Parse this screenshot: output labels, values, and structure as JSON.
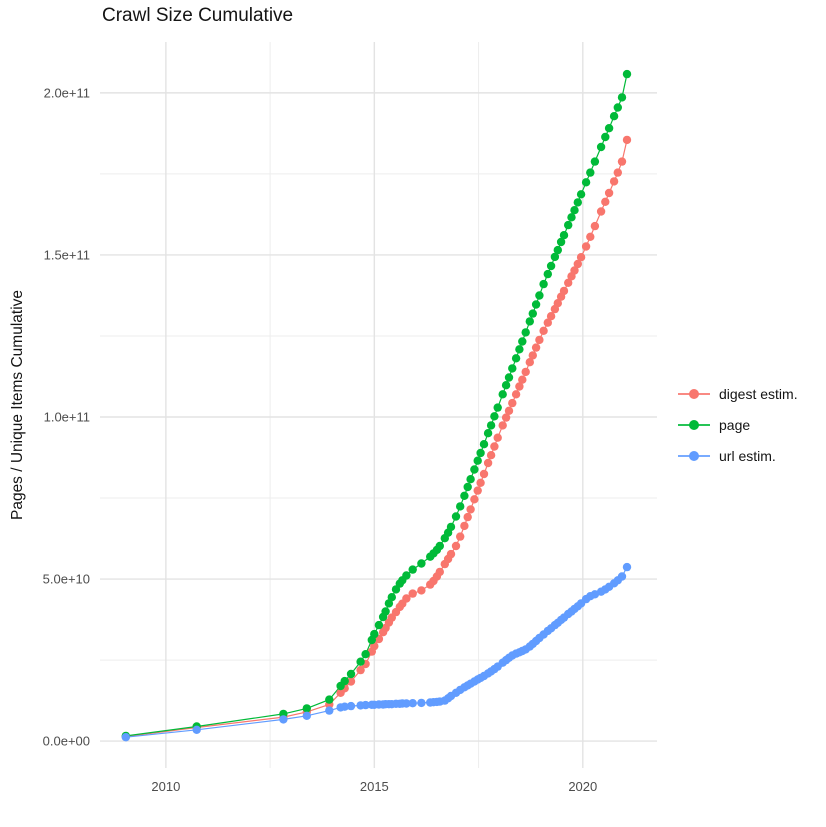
{
  "title": "Crawl Size Cumulative",
  "y_axis_label": "Pages / Unique Items Cumulative",
  "colors": {
    "digest": "#F8766D",
    "page": "#00BA38",
    "url": "#619CFF",
    "grid_major": "#E3E3E3",
    "grid_minor": "#EDEDED",
    "tick_text": "#4D4D4D"
  },
  "legend": {
    "items": [
      {
        "label": "digest estim.",
        "color": "#F8766D"
      },
      {
        "label": "page",
        "color": "#00BA38"
      },
      {
        "label": "url estim.",
        "color": "#619CFF"
      }
    ]
  },
  "chart_data": {
    "type": "scatter",
    "title": "Crawl Size Cumulative",
    "xlabel": "",
    "ylabel": "Pages / Unique Items Cumulative",
    "grid": true,
    "legend_position": "right",
    "xlim": [
      2008.42,
      2021.78
    ],
    "ylim": [
      -8300000000.0,
      215700000000.0
    ],
    "x_ticks": {
      "values": [
        2010,
        2015,
        2020
      ],
      "labels": [
        "2010",
        "2015",
        "2020"
      ]
    },
    "x_minor": [
      2012.5,
      2017.5
    ],
    "y_ticks": {
      "values": [
        0,
        50000000000.0,
        100000000000.0,
        150000000000.0,
        200000000000.0
      ],
      "labels": [
        "0.0e+00",
        "5.0e+10",
        "1.0e+11",
        "1.5e+11",
        "2.0e+11"
      ]
    },
    "y_minor": [
      25000000000.0,
      75000000000.0,
      125000000000.0,
      175000000000.0
    ],
    "series": [
      {
        "name": "digest estim.",
        "color": "#F8766D",
        "points": [
          [
            2009.04,
            1400000000.0
          ],
          [
            2010.74,
            4200000000.0
          ],
          [
            2012.82,
            7400000000.0
          ],
          [
            2013.38,
            9000000000.0
          ],
          [
            2013.92,
            11300000000.0
          ],
          [
            2014.19,
            14900000000.0
          ],
          [
            2014.29,
            16300000000.0
          ],
          [
            2014.44,
            18400000000.0
          ],
          [
            2014.67,
            21900000000.0
          ],
          [
            2014.79,
            23800000000.0
          ],
          [
            2014.94,
            27600000000.0
          ],
          [
            2015.0,
            29300000000.0
          ],
          [
            2015.11,
            31500000000.0
          ],
          [
            2015.21,
            33600000000.0
          ],
          [
            2015.27,
            34900000000.0
          ],
          [
            2015.35,
            36600000000.0
          ],
          [
            2015.42,
            38100000000.0
          ],
          [
            2015.52,
            39800000000.0
          ],
          [
            2015.61,
            41400000000.0
          ],
          [
            2015.67,
            42400000000.0
          ],
          [
            2015.77,
            44000000000.0
          ],
          [
            2015.92,
            45500000000.0
          ],
          [
            2016.13,
            46500000000.0
          ],
          [
            2016.34,
            48300000000.0
          ],
          [
            2016.42,
            49400000000.0
          ],
          [
            2016.5,
            50800000000.0
          ],
          [
            2016.57,
            52200000000.0
          ],
          [
            2016.69,
            54600000000.0
          ],
          [
            2016.77,
            56200000000.0
          ],
          [
            2016.84,
            57700000000.0
          ],
          [
            2016.96,
            60200000000.0
          ],
          [
            2017.06,
            63100000000.0
          ],
          [
            2017.16,
            66400000000.0
          ],
          [
            2017.24,
            69100000000.0
          ],
          [
            2017.31,
            71500000000.0
          ],
          [
            2017.4,
            74600000000.0
          ],
          [
            2017.48,
            77300000000.0
          ],
          [
            2017.55,
            79700000000.0
          ],
          [
            2017.63,
            82400000000.0
          ],
          [
            2017.73,
            85800000000.0
          ],
          [
            2017.8,
            88200000000.0
          ],
          [
            2017.88,
            90900000000.0
          ],
          [
            2017.96,
            93600000000.0
          ],
          [
            2018.08,
            97400000000.0
          ],
          [
            2018.16,
            99800000000.0
          ],
          [
            2018.23,
            101900000000.0
          ],
          [
            2018.31,
            104300000000.0
          ],
          [
            2018.4,
            107000000000.0
          ],
          [
            2018.48,
            109400000000.0
          ],
          [
            2018.55,
            111500000000.0
          ],
          [
            2018.63,
            113900000000.0
          ],
          [
            2018.73,
            116900000000.0
          ],
          [
            2018.8,
            119000000000.0
          ],
          [
            2018.88,
            121400000000.0
          ],
          [
            2018.96,
            123800000000.0
          ],
          [
            2019.06,
            126600000000.0
          ],
          [
            2019.16,
            129100000000.0
          ],
          [
            2019.24,
            131100000000.0
          ],
          [
            2019.33,
            133300000000.0
          ],
          [
            2019.4,
            135100000000.0
          ],
          [
            2019.48,
            137100000000.0
          ],
          [
            2019.55,
            138900000000.0
          ],
          [
            2019.65,
            141400000000.0
          ],
          [
            2019.73,
            143400000000.0
          ],
          [
            2019.8,
            145200000000.0
          ],
          [
            2019.88,
            147200000000.0
          ],
          [
            2019.96,
            149300000000.0
          ],
          [
            2020.08,
            152600000000.0
          ],
          [
            2020.18,
            155600000000.0
          ],
          [
            2020.29,
            158900000000.0
          ],
          [
            2020.44,
            163400000000.0
          ],
          [
            2020.54,
            166400000000.0
          ],
          [
            2020.63,
            169100000000.0
          ],
          [
            2020.75,
            172700000000.0
          ],
          [
            2020.84,
            175400000000.0
          ],
          [
            2020.94,
            178800000000.0
          ],
          [
            2021.06,
            185500000000.0
          ]
        ]
      },
      {
        "name": "page",
        "color": "#00BA38",
        "points": [
          [
            2009.04,
            1600000000.0
          ],
          [
            2010.74,
            4500000000.0
          ],
          [
            2012.82,
            8400000000.0
          ],
          [
            2013.38,
            10100000000.0
          ],
          [
            2013.92,
            12800000000.0
          ],
          [
            2014.19,
            17000000000.0
          ],
          [
            2014.29,
            18500000000.0
          ],
          [
            2014.44,
            20700000000.0
          ],
          [
            2014.67,
            24500000000.0
          ],
          [
            2014.79,
            26800000000.0
          ],
          [
            2014.94,
            31200000000.0
          ],
          [
            2015.0,
            33000000000.0
          ],
          [
            2015.11,
            35800000000.0
          ],
          [
            2015.21,
            38300000000.0
          ],
          [
            2015.27,
            40000000000.0
          ],
          [
            2015.35,
            42500000000.0
          ],
          [
            2015.42,
            44400000000.0
          ],
          [
            2015.52,
            46800000000.0
          ],
          [
            2015.61,
            48600000000.0
          ],
          [
            2015.67,
            49600000000.0
          ],
          [
            2015.77,
            51100000000.0
          ],
          [
            2015.92,
            52900000000.0
          ],
          [
            2016.13,
            54800000000.0
          ],
          [
            2016.34,
            56900000000.0
          ],
          [
            2016.42,
            57900000000.0
          ],
          [
            2016.5,
            59000000000.0
          ],
          [
            2016.57,
            60200000000.0
          ],
          [
            2016.69,
            62600000000.0
          ],
          [
            2016.77,
            64300000000.0
          ],
          [
            2016.84,
            66100000000.0
          ],
          [
            2016.96,
            69300000000.0
          ],
          [
            2017.06,
            72400000000.0
          ],
          [
            2017.16,
            75700000000.0
          ],
          [
            2017.24,
            78400000000.0
          ],
          [
            2017.31,
            80800000000.0
          ],
          [
            2017.4,
            83800000000.0
          ],
          [
            2017.48,
            86500000000.0
          ],
          [
            2017.55,
            88900000000.0
          ],
          [
            2017.63,
            91600000000.0
          ],
          [
            2017.73,
            95000000000.0
          ],
          [
            2017.8,
            97400000000.0
          ],
          [
            2017.88,
            100200000000.0
          ],
          [
            2017.96,
            102900000000.0
          ],
          [
            2018.08,
            107000000000.0
          ],
          [
            2018.16,
            109800000000.0
          ],
          [
            2018.23,
            112200000000.0
          ],
          [
            2018.31,
            115000000000.0
          ],
          [
            2018.4,
            118100000000.0
          ],
          [
            2018.48,
            120900000000.0
          ],
          [
            2018.55,
            123300000000.0
          ],
          [
            2018.63,
            126100000000.0
          ],
          [
            2018.73,
            129500000000.0
          ],
          [
            2018.8,
            131900000000.0
          ],
          [
            2018.88,
            134700000000.0
          ],
          [
            2018.96,
            137500000000.0
          ],
          [
            2019.06,
            141000000000.0
          ],
          [
            2019.16,
            144100000000.0
          ],
          [
            2019.24,
            146600000000.0
          ],
          [
            2019.33,
            149400000000.0
          ],
          [
            2019.4,
            151500000000.0
          ],
          [
            2019.48,
            154000000000.0
          ],
          [
            2019.55,
            156100000000.0
          ],
          [
            2019.65,
            159200000000.0
          ],
          [
            2019.73,
            161600000000.0
          ],
          [
            2019.8,
            163800000000.0
          ],
          [
            2019.88,
            166200000000.0
          ],
          [
            2019.96,
            168700000000.0
          ],
          [
            2020.08,
            172400000000.0
          ],
          [
            2020.18,
            175400000000.0
          ],
          [
            2020.29,
            178800000000.0
          ],
          [
            2020.44,
            183300000000.0
          ],
          [
            2020.54,
            186400000000.0
          ],
          [
            2020.63,
            189100000000.0
          ],
          [
            2020.75,
            192800000000.0
          ],
          [
            2020.84,
            195500000000.0
          ],
          [
            2020.94,
            198600000000.0
          ],
          [
            2021.06,
            205800000000.0
          ]
        ]
      },
      {
        "name": "url estim.",
        "color": "#619CFF",
        "points": [
          [
            2009.04,
            1200000000.0
          ],
          [
            2010.74,
            3500000000.0
          ],
          [
            2012.82,
            6700000000.0
          ],
          [
            2013.38,
            7800000000.0
          ],
          [
            2013.92,
            9400000000.0
          ],
          [
            2014.19,
            10400000000.0
          ],
          [
            2014.29,
            10600000000.0
          ],
          [
            2014.44,
            10800000000.0
          ],
          [
            2014.67,
            11000000000.0
          ],
          [
            2014.79,
            11100000000.0
          ],
          [
            2014.94,
            11200000000.0
          ],
          [
            2015.0,
            11200000000.0
          ],
          [
            2015.11,
            11300000000.0
          ],
          [
            2015.21,
            11300000000.0
          ],
          [
            2015.27,
            11400000000.0
          ],
          [
            2015.35,
            11400000000.0
          ],
          [
            2015.42,
            11400000000.0
          ],
          [
            2015.52,
            11500000000.0
          ],
          [
            2015.61,
            11500000000.0
          ],
          [
            2015.67,
            11600000000.0
          ],
          [
            2015.77,
            11600000000.0
          ],
          [
            2015.92,
            11700000000.0
          ],
          [
            2016.13,
            11800000000.0
          ],
          [
            2016.34,
            11900000000.0
          ],
          [
            2016.42,
            12000000000.0
          ],
          [
            2016.5,
            12100000000.0
          ],
          [
            2016.57,
            12200000000.0
          ],
          [
            2016.69,
            12500000000.0
          ],
          [
            2016.77,
            13200000000.0
          ],
          [
            2016.84,
            13900000000.0
          ],
          [
            2016.96,
            14900000000.0
          ],
          [
            2017.06,
            15800000000.0
          ],
          [
            2017.16,
            16600000000.0
          ],
          [
            2017.24,
            17200000000.0
          ],
          [
            2017.31,
            17700000000.0
          ],
          [
            2017.4,
            18400000000.0
          ],
          [
            2017.48,
            19000000000.0
          ],
          [
            2017.55,
            19500000000.0
          ],
          [
            2017.63,
            20100000000.0
          ],
          [
            2017.73,
            20900000000.0
          ],
          [
            2017.8,
            21500000000.0
          ],
          [
            2017.88,
            22200000000.0
          ],
          [
            2017.96,
            23000000000.0
          ],
          [
            2018.08,
            24200000000.0
          ],
          [
            2018.16,
            25000000000.0
          ],
          [
            2018.23,
            25700000000.0
          ],
          [
            2018.31,
            26400000000.0
          ],
          [
            2018.4,
            27000000000.0
          ],
          [
            2018.48,
            27400000000.0
          ],
          [
            2018.55,
            27800000000.0
          ],
          [
            2018.63,
            28300000000.0
          ],
          [
            2018.73,
            29200000000.0
          ],
          [
            2018.8,
            30000000000.0
          ],
          [
            2018.88,
            30900000000.0
          ],
          [
            2018.96,
            31800000000.0
          ],
          [
            2019.06,
            32900000000.0
          ],
          [
            2019.16,
            34000000000.0
          ],
          [
            2019.24,
            34800000000.0
          ],
          [
            2019.33,
            35800000000.0
          ],
          [
            2019.4,
            36500000000.0
          ],
          [
            2019.48,
            37400000000.0
          ],
          [
            2019.55,
            38100000000.0
          ],
          [
            2019.65,
            39200000000.0
          ],
          [
            2019.73,
            40000000000.0
          ],
          [
            2019.8,
            40800000000.0
          ],
          [
            2019.88,
            41600000000.0
          ],
          [
            2019.96,
            42500000000.0
          ],
          [
            2020.08,
            43800000000.0
          ],
          [
            2020.18,
            44700000000.0
          ],
          [
            2020.29,
            45300000000.0
          ],
          [
            2020.44,
            46100000000.0
          ],
          [
            2020.54,
            46800000000.0
          ],
          [
            2020.63,
            47600000000.0
          ],
          [
            2020.75,
            48700000000.0
          ],
          [
            2020.84,
            49600000000.0
          ],
          [
            2020.94,
            50800000000.0
          ],
          [
            2021.06,
            53700000000.0
          ]
        ]
      }
    ]
  }
}
